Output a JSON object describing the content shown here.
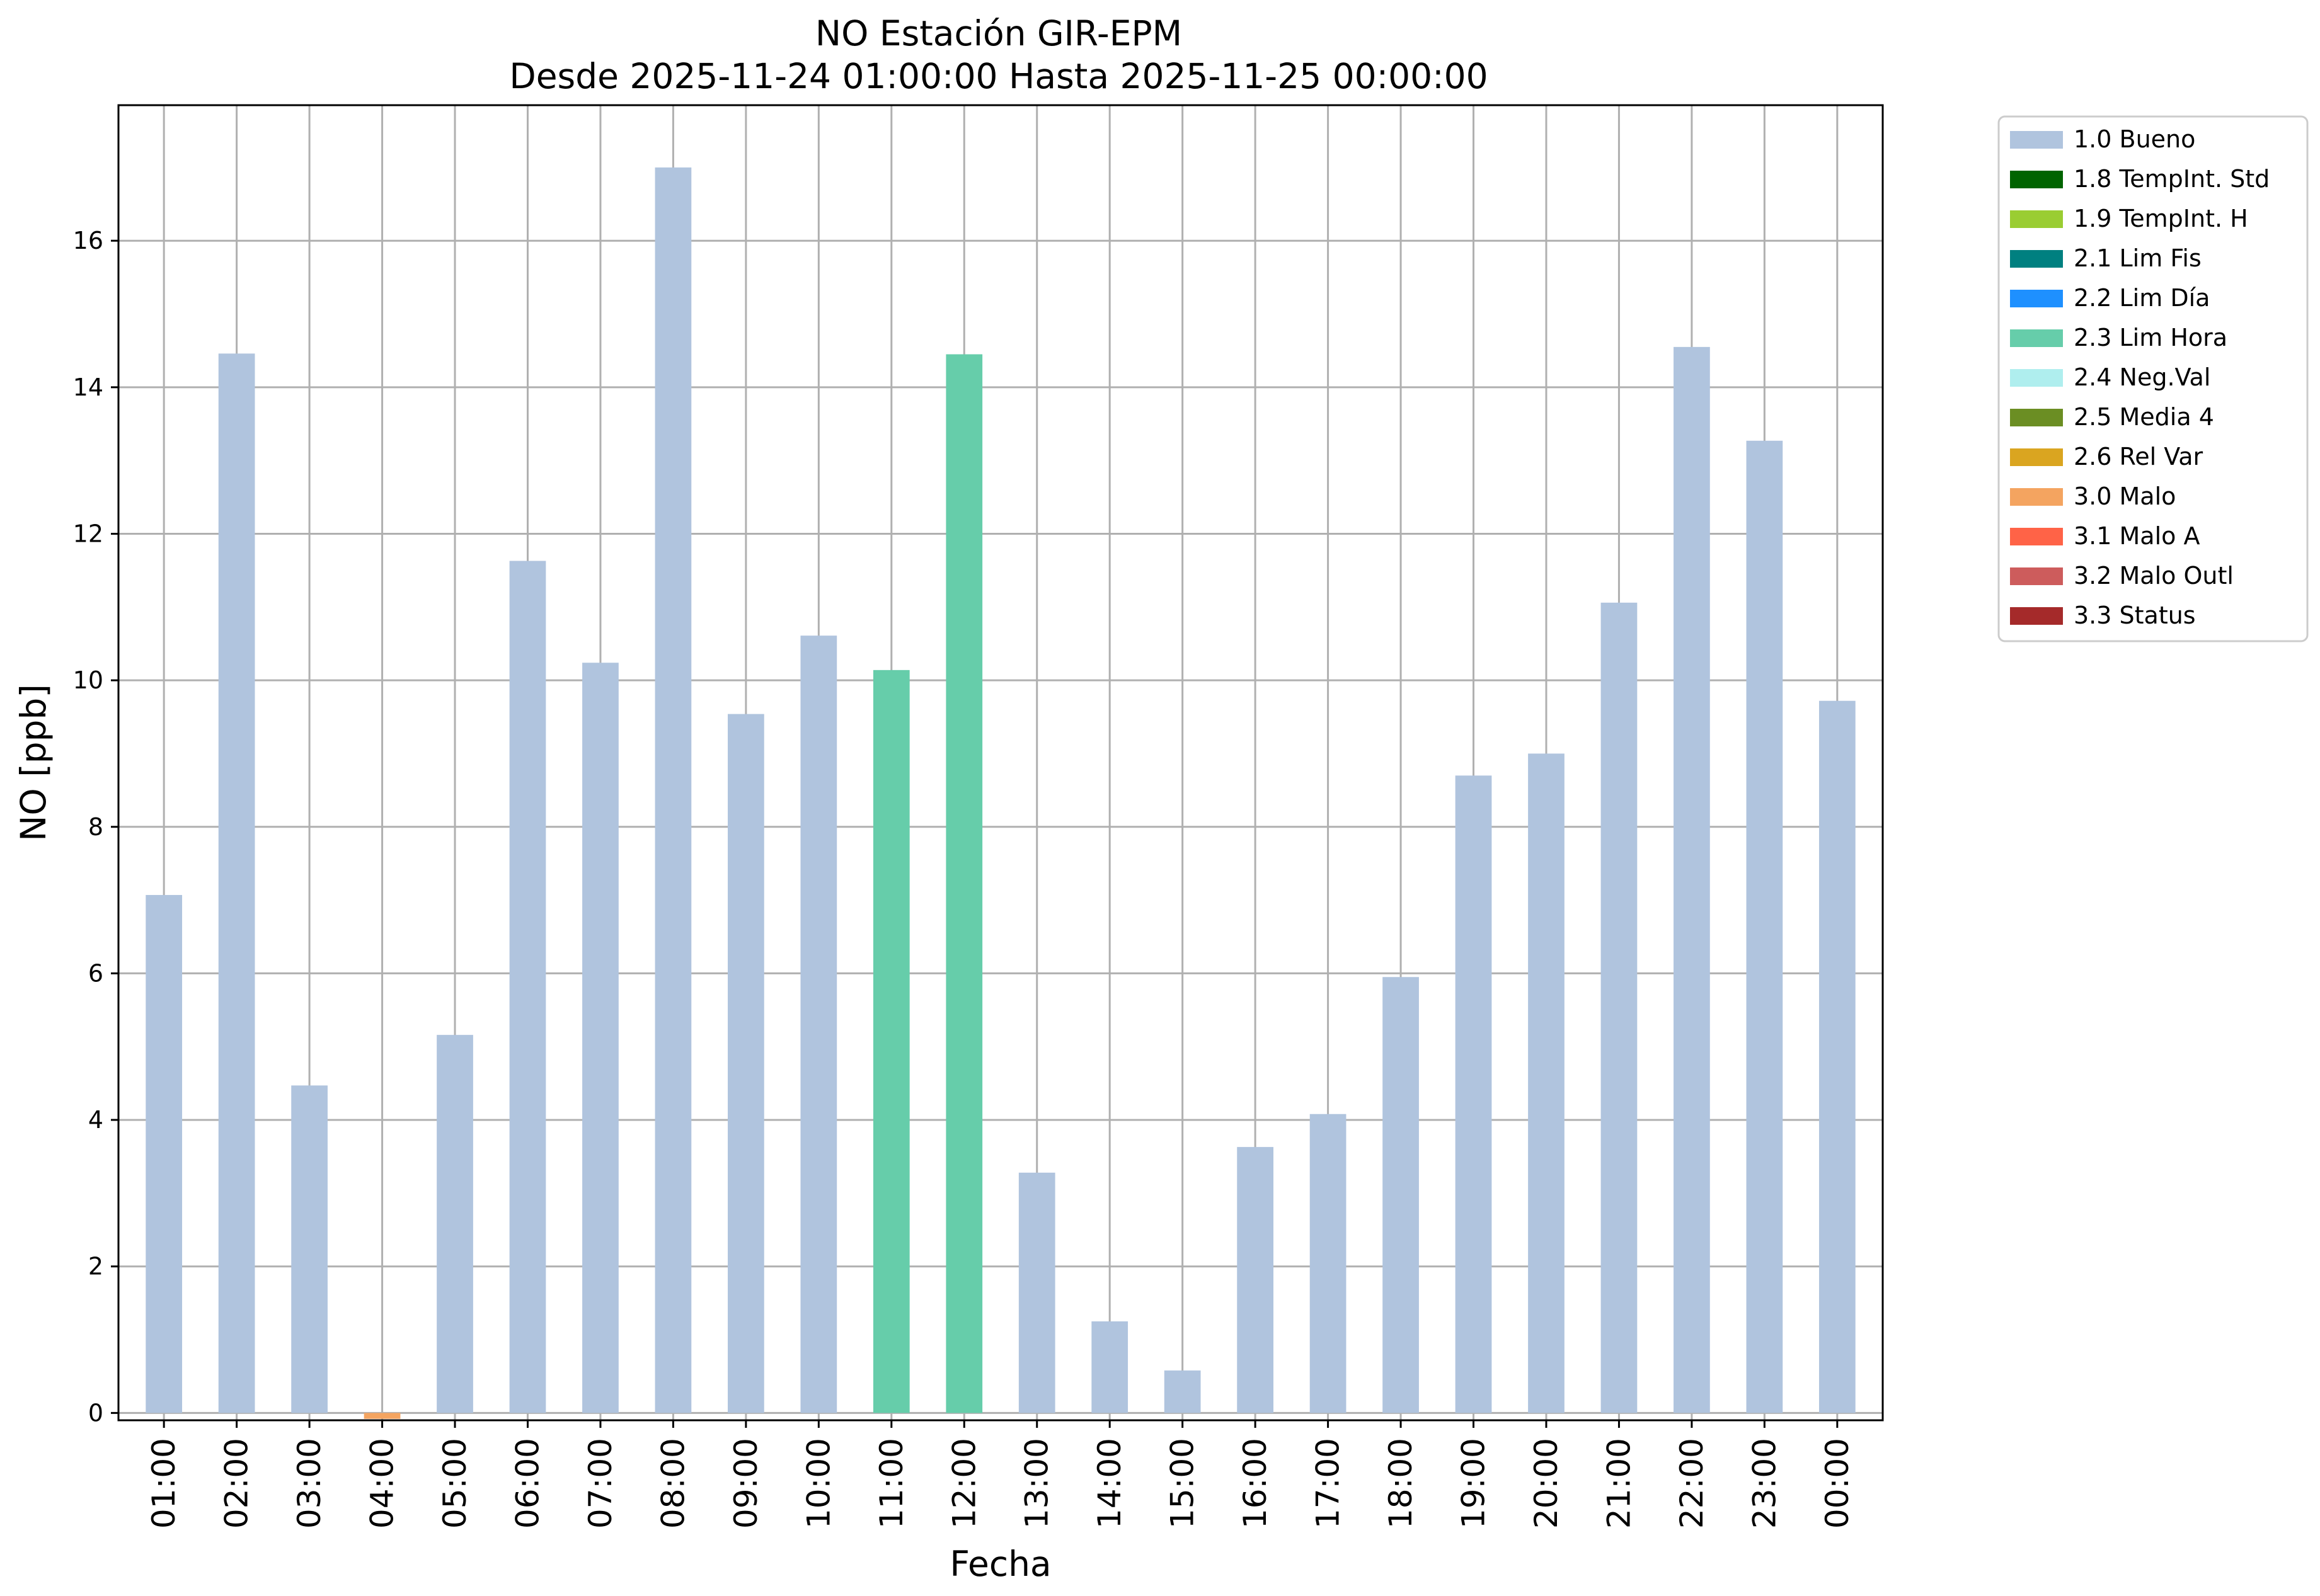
{
  "chart_data": {
    "type": "bar",
    "title_line1": "NO Estación GIR-EPM",
    "title_line2": "Desde 2025-11-24 01:00:00 Hasta 2025-11-25 00:00:00",
    "xlabel": "Fecha",
    "ylabel": "NO [ppb]",
    "ylim": [
      -0.1,
      17.85
    ],
    "yticks": [
      0,
      2,
      4,
      6,
      8,
      10,
      12,
      14,
      16
    ],
    "grid": true,
    "legend_position": "outside-right",
    "categories": [
      "01:00",
      "02:00",
      "03:00",
      "04:00",
      "05:00",
      "06:00",
      "07:00",
      "08:00",
      "09:00",
      "10:00",
      "11:00",
      "12:00",
      "13:00",
      "14:00",
      "15:00",
      "16:00",
      "17:00",
      "18:00",
      "19:00",
      "20:00",
      "21:00",
      "22:00",
      "23:00",
      "00:00"
    ],
    "values": [
      7.07,
      14.46,
      4.47,
      -0.08,
      5.16,
      11.63,
      10.24,
      17.0,
      9.54,
      10.61,
      10.14,
      14.45,
      3.28,
      1.25,
      0.58,
      3.63,
      4.08,
      5.95,
      8.7,
      9.0,
      11.06,
      14.55,
      13.27,
      9.72
    ],
    "flags": [
      "1.0",
      "1.0",
      "1.0",
      "3.0",
      "1.0",
      "1.0",
      "1.0",
      "1.0",
      "1.0",
      "1.0",
      "2.3",
      "2.3",
      "1.0",
      "1.0",
      "1.0",
      "1.0",
      "1.0",
      "1.0",
      "1.0",
      "1.0",
      "1.0",
      "1.0",
      "1.0",
      "1.0"
    ],
    "legend": [
      {
        "code": "1.0",
        "label": "1.0 Bueno",
        "color": "#b0c4de"
      },
      {
        "code": "1.8",
        "label": "1.8 TempInt. Std",
        "color": "#006400"
      },
      {
        "code": "1.9",
        "label": "1.9 TempInt. H",
        "color": "#9acd32"
      },
      {
        "code": "2.1",
        "label": "2.1 Lim Fis",
        "color": "#008080"
      },
      {
        "code": "2.2",
        "label": "2.2 Lim Día",
        "color": "#1e90ff"
      },
      {
        "code": "2.3",
        "label": "2.3 Lim Hora",
        "color": "#66cdaa"
      },
      {
        "code": "2.4",
        "label": "2.4 Neg.Val",
        "color": "#afeeee"
      },
      {
        "code": "2.5",
        "label": "2.5 Media 4",
        "color": "#6b8e23"
      },
      {
        "code": "2.6",
        "label": "2.6 Rel Var",
        "color": "#daa520"
      },
      {
        "code": "3.0",
        "label": "3.0 Malo",
        "color": "#f4a460"
      },
      {
        "code": "3.1",
        "label": "3.1 Malo A",
        "color": "#ff6347"
      },
      {
        "code": "3.2",
        "label": "3.2 Malo Outl",
        "color": "#cd5c5c"
      },
      {
        "code": "3.3",
        "label": "3.3 Status",
        "color": "#a52a2a"
      }
    ]
  }
}
